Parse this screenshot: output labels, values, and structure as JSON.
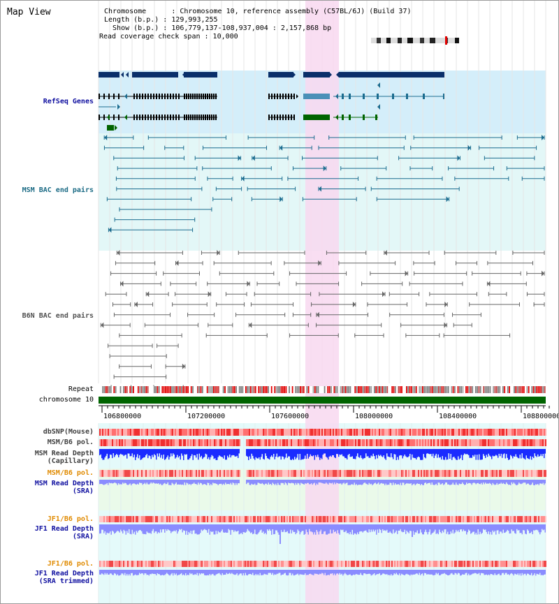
{
  "view_title": "Map View",
  "header": {
    "chromosome": "Chromosome      : Chromosome 10, reference assembly (C57BL/6J) (Build 37)",
    "length": "Length (b.p.) : 129,993,255",
    "show": "  Show (b.p.) : 106,779,137-108,937,004 : 2,157,868 bp",
    "coverage": "Read coverage check span : 10,000"
  },
  "axis": {
    "ticks": [
      "106800000",
      "107200000",
      "107600000",
      "108000000",
      "108400000",
      "108800000"
    ]
  },
  "tracks": {
    "refseq_genes": "RefSeq Genes",
    "msm_bac": "MSM BAC end pairs",
    "b6n_bac": "B6N BAC end pairs",
    "repeat": "Repeat",
    "chromosome": "chromosome 10",
    "dbsnp": "dbSNP(Mouse)",
    "msm_b6_pol_1": "MSM/B6 pol.",
    "msm_read_depth_cap": "MSM Read Depth",
    "msm_read_depth_cap_sub": "(Capillary)",
    "msm_b6_pol_2": "MSM/B6 pol.",
    "msm_read_depth_sra": "MSM Read Depth",
    "msm_read_depth_sra_sub": "(SRA)",
    "jf1_b6_pol_1": "JF1/B6 pol.",
    "jf1_read_depth_sra": "JF1 Read Depth",
    "jf1_read_depth_sra_sub": "(SRA)",
    "jf1_b6_pol_2": "JF1/B6 pol.",
    "jf1_read_depth_trim": "JF1 Read Depth",
    "jf1_read_depth_trim_sub": "(SRA trimmed)"
  },
  "colors": {
    "highlight": "#f8d8f0",
    "gene_panel": "#d4eefa",
    "msm_panel": "#e3f7f7",
    "dark_blue": "#0a2f6a",
    "teal": "#1b6c8f",
    "label_blue": "#1010a0",
    "label_teal": "#1a6a84",
    "label_gray": "#404040",
    "label_orange": "#e08a00",
    "chrom_green": "#006400",
    "depth_blue": "#1a2bff",
    "depth_light": "#8a8cff"
  }
}
